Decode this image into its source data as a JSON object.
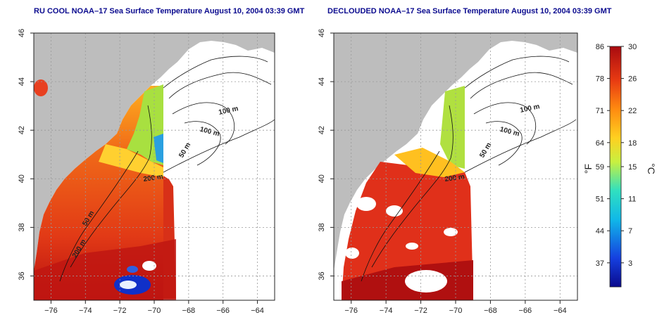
{
  "maps": [
    {
      "title": "RU COOL NOAA–17 Sea Surface Temperature August 10, 2004 03:39 GMT",
      "variant": "raw"
    },
    {
      "title": "DECLOUDED NOAA–17 Sea Surface Temperature August 10, 2004 03:39 GMT",
      "variant": "declouded"
    }
  ],
  "axes": {
    "lon_ticks": [
      "−76",
      "−74",
      "−72",
      "−70",
      "−68",
      "−66",
      "−64"
    ],
    "lat_ticks": [
      "46",
      "44",
      "42",
      "40",
      "38",
      "36"
    ],
    "lon_range": [
      -77,
      -63
    ],
    "lat_range": [
      35,
      46
    ]
  },
  "contour_labels": [
    "100 m",
    "100 m",
    "50 m",
    "200 m",
    "50 m",
    "200 m"
  ],
  "colorbar": {
    "f_label": "°F",
    "c_label": "°C",
    "f_ticks": [
      "86",
      "78",
      "71",
      "64",
      "59",
      "51",
      "44",
      "37"
    ],
    "c_ticks": [
      "30",
      "26",
      "22",
      "18",
      "15",
      "11",
      "7",
      "3"
    ],
    "c_range": [
      0,
      30
    ]
  },
  "colors": {
    "land": "#bdbdbd",
    "title": "#0b0b8f",
    "warm": "#e5391a",
    "hot": "#b80f0f"
  }
}
